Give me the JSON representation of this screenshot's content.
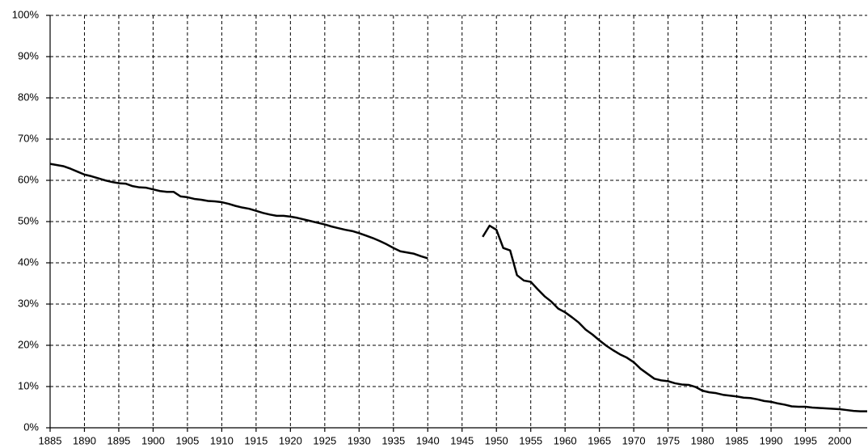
{
  "chart_data": {
    "type": "line",
    "x": [
      1885,
      1886,
      1887,
      1888,
      1889,
      1890,
      1891,
      1892,
      1893,
      1894,
      1895,
      1896,
      1897,
      1898,
      1899,
      1900,
      1901,
      1902,
      1903,
      1904,
      1905,
      1906,
      1907,
      1908,
      1909,
      1910,
      1911,
      1912,
      1913,
      1914,
      1915,
      1916,
      1917,
      1918,
      1919,
      1920,
      1921,
      1922,
      1923,
      1924,
      1925,
      1926,
      1927,
      1928,
      1929,
      1930,
      1931,
      1932,
      1933,
      1934,
      1935,
      1936,
      1937,
      1938,
      1939,
      1940,
      1941,
      1942,
      1943,
      1944,
      1945,
      1946,
      1947,
      1948,
      1949,
      1950,
      1951,
      1952,
      1953,
      1954,
      1955,
      1956,
      1957,
      1958,
      1959,
      1960,
      1961,
      1962,
      1963,
      1964,
      1965,
      1966,
      1967,
      1968,
      1969,
      1970,
      1971,
      1972,
      1973,
      1974,
      1975,
      1976,
      1977,
      1978,
      1979,
      1980,
      1981,
      1982,
      1983,
      1984,
      1985,
      1986,
      1987,
      1988,
      1989,
      1990,
      1991,
      1992,
      1993,
      1994,
      1995,
      1996,
      1997,
      1998,
      1999,
      2000,
      2001,
      2002,
      2003,
      2004
    ],
    "values": [
      64.0,
      63.7,
      63.4,
      62.8,
      62.1,
      61.4,
      61.0,
      60.5,
      60.0,
      59.6,
      59.3,
      59.2,
      58.6,
      58.3,
      58.2,
      57.8,
      57.4,
      57.2,
      57.2,
      56.1,
      55.9,
      55.5,
      55.3,
      55.0,
      54.9,
      54.7,
      54.3,
      53.8,
      53.4,
      53.1,
      52.6,
      52.1,
      51.7,
      51.4,
      51.4,
      51.2,
      50.9,
      50.5,
      50.1,
      49.7,
      49.3,
      48.8,
      48.4,
      48.0,
      47.7,
      47.2,
      46.6,
      46.0,
      45.3,
      44.5,
      43.6,
      42.8,
      42.5,
      42.2,
      41.6,
      41.1,
      null,
      null,
      null,
      null,
      null,
      null,
      null,
      46.3,
      49.0,
      48.0,
      43.6,
      43.0,
      37.0,
      35.7,
      35.4,
      33.6,
      31.9,
      30.6,
      28.9,
      28.0,
      26.8,
      25.5,
      23.8,
      22.6,
      21.2,
      19.9,
      18.8,
      17.8,
      17.0,
      15.9,
      14.3,
      13.1,
      11.9,
      11.5,
      11.3,
      10.8,
      10.5,
      10.4,
      9.9,
      9.0,
      8.6,
      8.4,
      8.0,
      7.8,
      7.6,
      7.3,
      7.2,
      6.9,
      6.5,
      6.3,
      5.9,
      5.6,
      5.2,
      5.1,
      5.1,
      4.9,
      4.8,
      4.7,
      4.6,
      4.5,
      4.3,
      4.1,
      4.0,
      4.0
    ],
    "color": "#000000",
    "xlim": [
      1885,
      2004
    ],
    "xticks": [
      1885,
      1890,
      1895,
      1900,
      1905,
      1910,
      1915,
      1920,
      1925,
      1930,
      1935,
      1940,
      1945,
      1950,
      1955,
      1960,
      1965,
      1970,
      1975,
      1980,
      1985,
      1990,
      1995,
      2000
    ],
    "ylim": [
      0,
      100
    ],
    "yticks": [
      {
        "value": 0,
        "label": "0%"
      },
      {
        "value": 10,
        "label": "10%"
      },
      {
        "value": 20,
        "label": "20%"
      },
      {
        "value": 30,
        "label": "30%"
      },
      {
        "value": 40,
        "label": "40%"
      },
      {
        "value": 50,
        "label": "50%"
      },
      {
        "value": 60,
        "label": "60%"
      },
      {
        "value": 70,
        "label": "70%"
      },
      {
        "value": 80,
        "label": "80%"
      },
      {
        "value": 90,
        "label": "90%"
      },
      {
        "value": 100,
        "label": "100%"
      }
    ],
    "grid": true
  }
}
